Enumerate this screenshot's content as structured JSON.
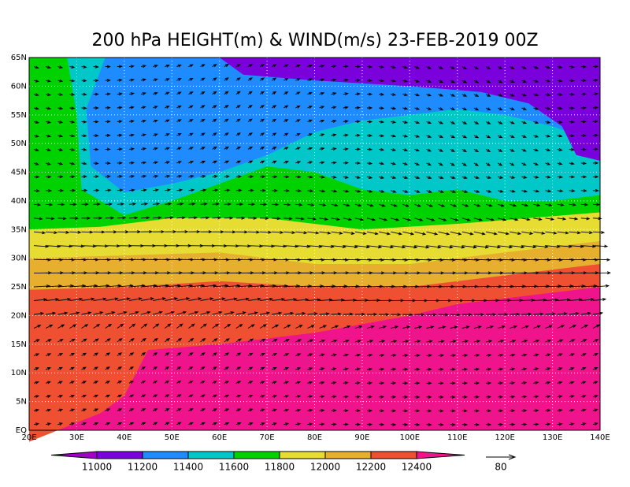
{
  "title": "200 hPa HEIGHT(m) & WIND(m/s) 23-FEB-2019 00Z",
  "lat_ticks": [
    "EQ",
    "5N",
    "10N",
    "15N",
    "20N",
    "25N",
    "30N",
    "35N",
    "40N",
    "45N",
    "50N",
    "55N",
    "60N",
    "65N"
  ],
  "lon_ticks": [
    "20E",
    "30E",
    "40E",
    "50E",
    "60E",
    "70E",
    "80E",
    "90E",
    "100E",
    "110E",
    "120E",
    "130E",
    "140E"
  ],
  "colorbar": {
    "levels": [
      11000,
      11200,
      11400,
      11600,
      11800,
      12000,
      12200,
      12400
    ],
    "colors": [
      "#a000c8",
      "#7a00dc",
      "#1e8cff",
      "#00c8c8",
      "#00d200",
      "#e6dc32",
      "#e6af2d",
      "#f05032",
      "#f0148c"
    ]
  },
  "reference_vector": {
    "label": "80"
  }
}
